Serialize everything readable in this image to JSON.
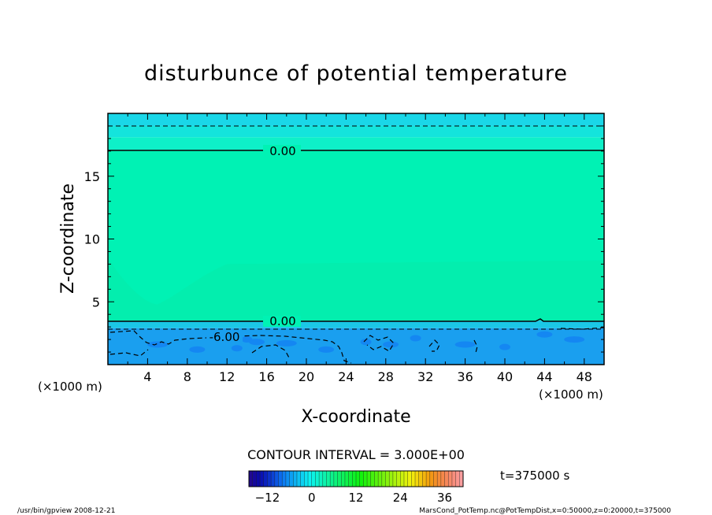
{
  "chart_data": {
    "type": "heatmap",
    "title": "disturbunce of potential temperature",
    "xlabel": "X-coordinate",
    "ylabel": "Z-coordinate",
    "x_unit_left": "(×1000 m)",
    "x_unit_right": "(×1000 m)",
    "xlim": [
      0,
      50
    ],
    "ylim": [
      0,
      20
    ],
    "x_ticks": [
      4,
      8,
      12,
      16,
      20,
      24,
      28,
      32,
      36,
      40,
      44,
      48
    ],
    "y_ticks": [
      5,
      10,
      15
    ],
    "contour_interval_text": "CONTOUR INTERVAL = 3.000E+00",
    "time_text": "t=375000  s",
    "contour_labels": [
      {
        "text": "0.00",
        "x": 17.5,
        "z": 17.1
      },
      {
        "text": "0.00",
        "x": 17.5,
        "z": 3.5
      },
      {
        "text": "-6.00",
        "x": 12,
        "z": 2.2
      }
    ],
    "layers": [
      {
        "z0": 19.0,
        "z1": 20.0,
        "color": "#1ad7e8",
        "value_range": [
          -3,
          0
        ]
      },
      {
        "z0": 18.1,
        "z1": 19.0,
        "color": "#14e4dc",
        "value_range": [
          -3,
          0
        ]
      },
      {
        "z0": 17.1,
        "z1": 18.1,
        "color": "#0ef0c8",
        "value_range": [
          -3,
          0
        ]
      },
      {
        "z0": 3.5,
        "z1": 17.1,
        "color": "#00f2b4",
        "value_range": [
          0,
          3
        ]
      },
      {
        "z0": 2.9,
        "z1": 3.5,
        "color": "#1bc7e6",
        "value_range": [
          -3,
          0
        ]
      },
      {
        "z0": 0.0,
        "z1": 2.9,
        "color": "#1a9fef",
        "value_range": [
          -9,
          -3
        ]
      }
    ],
    "colorbar": {
      "ticks": [
        -12,
        0,
        12,
        24,
        36
      ],
      "min": -17,
      "max": 41
    }
  },
  "footer": {
    "left": "/usr/bin/gpview   2008-12-21",
    "right": "MarsCond_PotTemp.nc@PotTempDist,x=0:50000,z=0:20000,t=375000"
  }
}
